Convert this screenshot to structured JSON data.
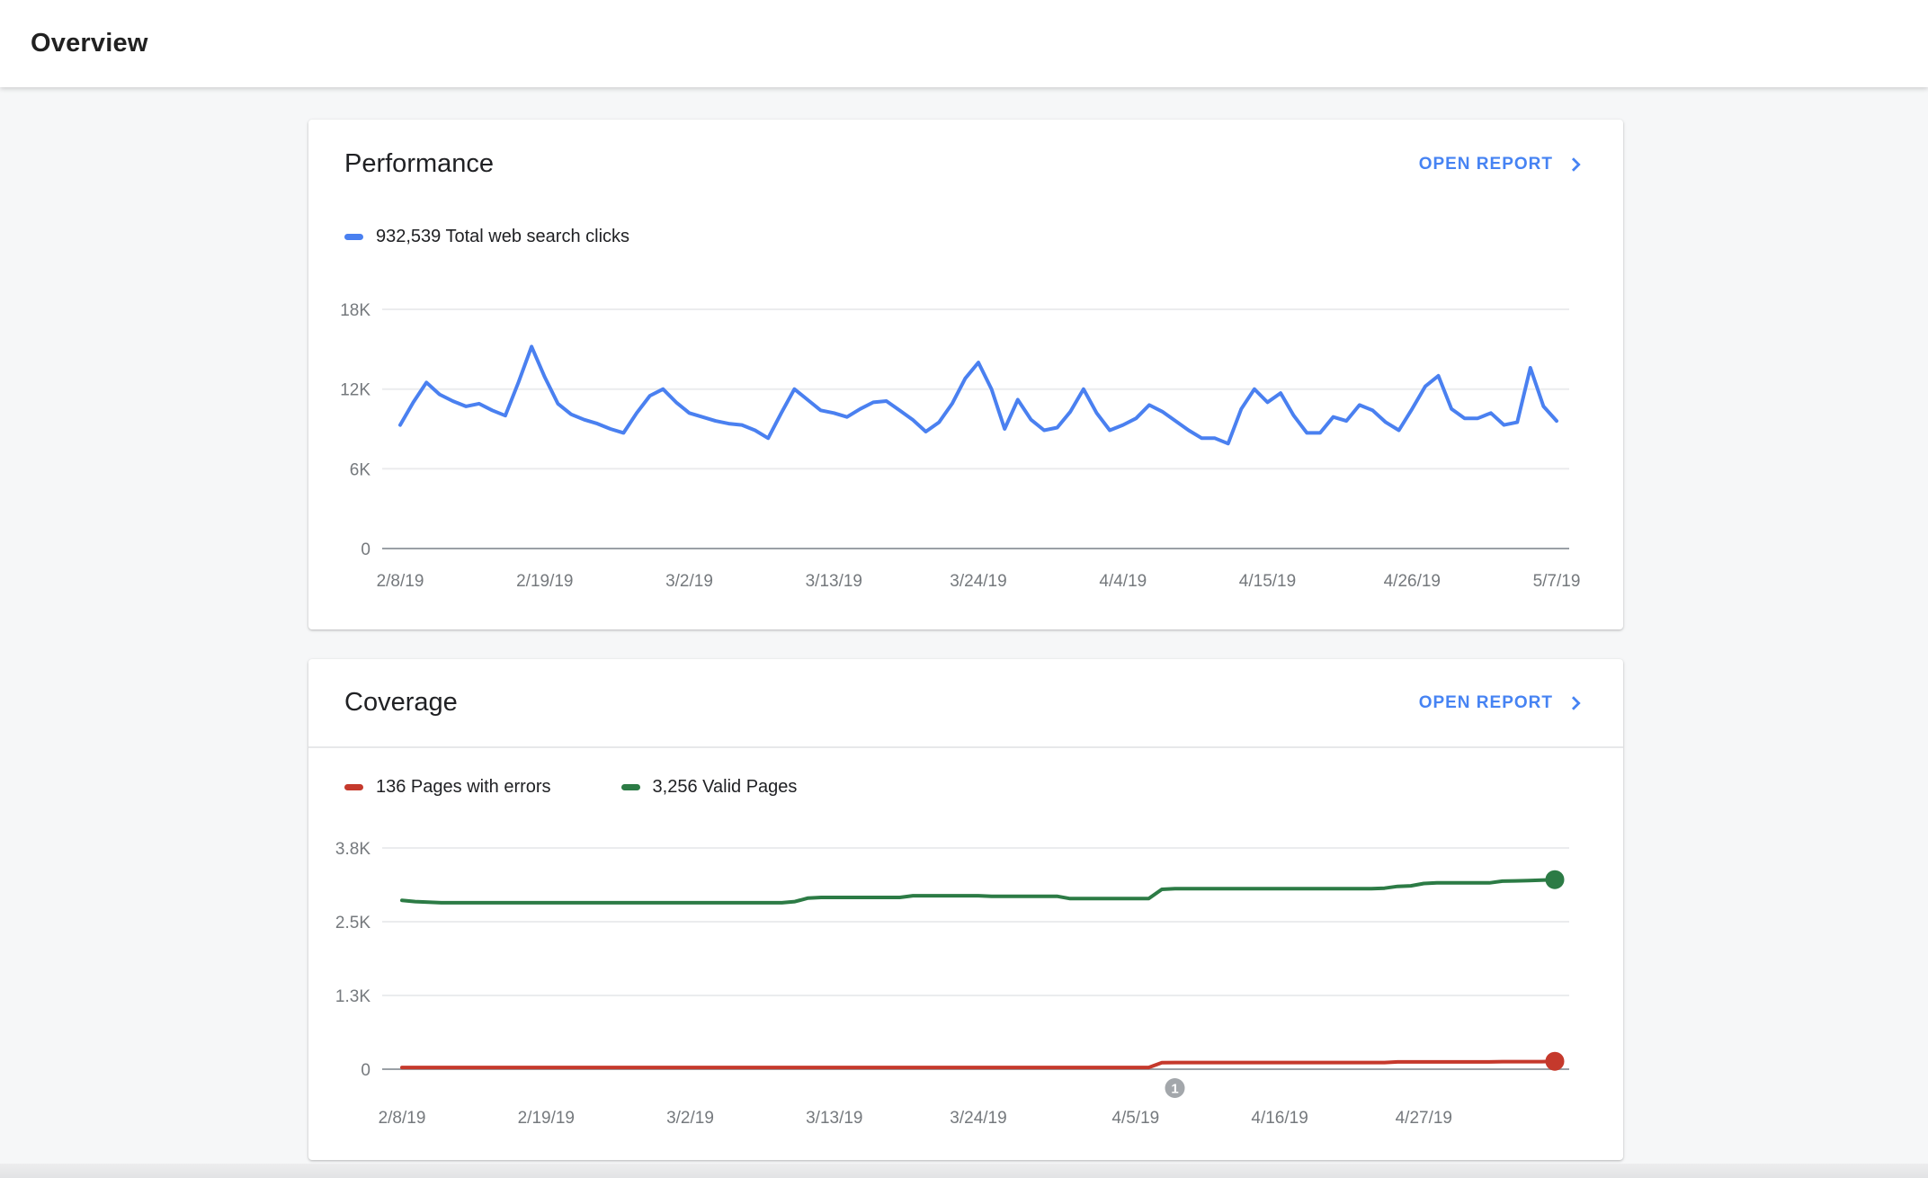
{
  "page": {
    "title": "Overview"
  },
  "colors": {
    "accent_blue": "#4683f3",
    "series_blue": "#4a80f0",
    "error_red": "#c5392c",
    "valid_green": "#2c7b45",
    "grid": "#ebecee",
    "axis": "#9aa0a6",
    "annotation_gray": "#a3a7ab"
  },
  "cards": [
    {
      "title": "Performance",
      "open_report": "OPEN REPORT",
      "legend": [
        {
          "text": "932,539 Total web search clicks"
        }
      ]
    },
    {
      "title": "Coverage",
      "open_report": "OPEN REPORT",
      "legend": [
        {
          "text": "136 Pages with errors"
        },
        {
          "text": "3,256 Valid Pages"
        }
      ]
    }
  ],
  "chart_data": [
    {
      "type": "line",
      "title": "Performance",
      "ylabel": "Total web search clicks",
      "ylim": [
        0,
        18000
      ],
      "grid": true,
      "x_start": "2/8/19",
      "x_end": "5/7/19",
      "x_tick_labels": [
        "2/8/19",
        "2/19/19",
        "3/2/19",
        "3/13/19",
        "3/24/19",
        "4/4/19",
        "4/15/19",
        "4/26/19",
        "5/7/19"
      ],
      "x_tick_positions": [
        0,
        11,
        22,
        33,
        44,
        55,
        66,
        77,
        88
      ],
      "y_ticks": [
        {
          "label": "0",
          "value": 0
        },
        {
          "label": "6K",
          "value": 6000
        },
        {
          "label": "12K",
          "value": 12000
        },
        {
          "label": "18K",
          "value": 18000
        }
      ],
      "series": [
        {
          "name": "Total web search clicks",
          "total": "932,539",
          "color": "#4a80f0",
          "end_dot": false,
          "values": [
            9300,
            11000,
            12500,
            11600,
            11100,
            10700,
            10900,
            10400,
            10000,
            12500,
            15200,
            12900,
            10900,
            10100,
            9700,
            9400,
            9000,
            8700,
            10200,
            11500,
            12000,
            11000,
            10200,
            9900,
            9600,
            9400,
            9300,
            8900,
            8300,
            10200,
            12000,
            11200,
            10400,
            10200,
            9900,
            10500,
            11000,
            11100,
            10400,
            9700,
            8800,
            9500,
            10900,
            12800,
            14000,
            12000,
            9000,
            11200,
            9700,
            8900,
            9100,
            10300,
            12000,
            10200,
            8900,
            9300,
            9800,
            10800,
            10300,
            9600,
            8900,
            8300,
            8300,
            7900,
            10500,
            12000,
            11000,
            11700,
            10000,
            8700,
            8700,
            9900,
            9600,
            10800,
            10400,
            9500,
            8900,
            10500,
            12200,
            13000,
            10500,
            9800,
            9800,
            10200,
            9300,
            9500,
            13600,
            10700,
            9600
          ]
        }
      ]
    },
    {
      "type": "line",
      "title": "Coverage",
      "ylim": [
        0,
        3800
      ],
      "grid": true,
      "x_start": "2/8/19",
      "x_end": "5/7/19",
      "x_tick_labels": [
        "2/8/19",
        "2/19/19",
        "3/2/19",
        "3/13/19",
        "3/24/19",
        "4/5/19",
        "4/16/19",
        "4/27/19"
      ],
      "x_tick_positions": [
        0,
        11,
        22,
        33,
        44,
        56,
        67,
        78
      ],
      "y_ticks": [
        {
          "label": "0",
          "value": 0
        },
        {
          "label": "1.3K",
          "value": 1267
        },
        {
          "label": "2.5K",
          "value": 2533
        },
        {
          "label": "3.8K",
          "value": 3800
        }
      ],
      "annotation": {
        "label": "1",
        "day": 59
      },
      "series": [
        {
          "name": "Pages with errors",
          "total": "136",
          "color": "#c5392c",
          "end_dot": true,
          "values": [
            30,
            30,
            30,
            30,
            30,
            30,
            30,
            30,
            30,
            30,
            30,
            30,
            30,
            30,
            30,
            30,
            30,
            30,
            30,
            30,
            30,
            30,
            30,
            30,
            30,
            30,
            30,
            30,
            30,
            30,
            30,
            30,
            30,
            30,
            30,
            30,
            30,
            30,
            30,
            30,
            30,
            30,
            30,
            30,
            30,
            30,
            30,
            30,
            30,
            30,
            30,
            30,
            30,
            30,
            30,
            30,
            30,
            30,
            112,
            115,
            115,
            115,
            115,
            115,
            115,
            115,
            115,
            115,
            115,
            115,
            115,
            115,
            115,
            115,
            115,
            115,
            125,
            125,
            125,
            125,
            125,
            125,
            125,
            125,
            130,
            130,
            130,
            130,
            136
          ]
        },
        {
          "name": "Valid Pages",
          "total": "3,256",
          "color": "#2c7b45",
          "end_dot": true,
          "values": [
            2900,
            2880,
            2870,
            2860,
            2860,
            2860,
            2860,
            2860,
            2860,
            2860,
            2860,
            2860,
            2860,
            2860,
            2860,
            2860,
            2860,
            2860,
            2860,
            2860,
            2860,
            2860,
            2860,
            2860,
            2860,
            2860,
            2860,
            2860,
            2860,
            2860,
            2880,
            2940,
            2950,
            2950,
            2950,
            2950,
            2950,
            2950,
            2950,
            2980,
            2980,
            2980,
            2980,
            2980,
            2980,
            2970,
            2970,
            2970,
            2970,
            2970,
            2970,
            2930,
            2930,
            2930,
            2930,
            2930,
            2930,
            2930,
            3090,
            3100,
            3100,
            3100,
            3100,
            3100,
            3100,
            3100,
            3100,
            3100,
            3100,
            3100,
            3100,
            3100,
            3100,
            3100,
            3100,
            3110,
            3140,
            3150,
            3190,
            3200,
            3200,
            3200,
            3200,
            3200,
            3230,
            3235,
            3240,
            3248,
            3256
          ]
        }
      ]
    }
  ]
}
